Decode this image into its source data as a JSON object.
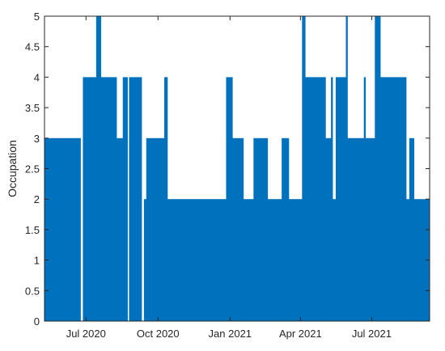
{
  "chart_data": {
    "type": "area",
    "ylabel": "Occupation",
    "xlabel": "",
    "ylim": [
      0,
      5
    ],
    "xlim": [
      "2020-05-09",
      "2021-09-13"
    ],
    "grid": false,
    "color": "#0072BD",
    "x_ticks": [
      {
        "date": "2020-07-01",
        "label": "Jul 2020"
      },
      {
        "date": "2020-10-01",
        "label": "Oct 2020"
      },
      {
        "date": "2021-01-01",
        "label": "Jan 2021"
      },
      {
        "date": "2021-04-01",
        "label": "Apr 2021"
      },
      {
        "date": "2021-07-01",
        "label": "Jul 2021"
      }
    ],
    "y_ticks": [
      {
        "value": 0,
        "label": "0"
      },
      {
        "value": 0.5,
        "label": "0.5"
      },
      {
        "value": 1,
        "label": "1"
      },
      {
        "value": 1.5,
        "label": "1.5"
      },
      {
        "value": 2,
        "label": "2"
      },
      {
        "value": 2.5,
        "label": "2.5"
      },
      {
        "value": 3,
        "label": "3"
      },
      {
        "value": 3.5,
        "label": "3.5"
      },
      {
        "value": 4,
        "label": "4"
      },
      {
        "value": 4.5,
        "label": "4.5"
      },
      {
        "value": 5,
        "label": "5"
      }
    ],
    "series": [
      {
        "steps": [
          {
            "start": "2020-05-09",
            "end": "2020-06-24",
            "value": 3
          },
          {
            "start": "2020-06-24",
            "end": "2020-06-27",
            "value": 0
          },
          {
            "start": "2020-06-27",
            "end": "2020-07-14",
            "value": 4
          },
          {
            "start": "2020-07-14",
            "end": "2020-07-20",
            "value": 5
          },
          {
            "start": "2020-07-20",
            "end": "2020-08-09",
            "value": 4
          },
          {
            "start": "2020-08-09",
            "end": "2020-08-17",
            "value": 3
          },
          {
            "start": "2020-08-17",
            "end": "2020-08-23",
            "value": 4
          },
          {
            "start": "2020-08-23",
            "end": "2020-08-25",
            "value": 0
          },
          {
            "start": "2020-08-25",
            "end": "2020-09-10",
            "value": 4
          },
          {
            "start": "2020-09-10",
            "end": "2020-09-13",
            "value": 0
          },
          {
            "start": "2020-09-13",
            "end": "2020-09-16",
            "value": 2
          },
          {
            "start": "2020-09-16",
            "end": "2020-10-09",
            "value": 3
          },
          {
            "start": "2020-10-09",
            "end": "2020-10-13",
            "value": 4
          },
          {
            "start": "2020-10-13",
            "end": "2020-12-27",
            "value": 2
          },
          {
            "start": "2020-12-27",
            "end": "2021-01-04",
            "value": 4
          },
          {
            "start": "2021-01-04",
            "end": "2021-01-18",
            "value": 3
          },
          {
            "start": "2021-01-18",
            "end": "2021-01-31",
            "value": 2
          },
          {
            "start": "2021-01-31",
            "end": "2021-02-18",
            "value": 3
          },
          {
            "start": "2021-02-18",
            "end": "2021-03-08",
            "value": 2
          },
          {
            "start": "2021-03-08",
            "end": "2021-03-17",
            "value": 3
          },
          {
            "start": "2021-03-17",
            "end": "2021-04-03",
            "value": 2
          },
          {
            "start": "2021-04-03",
            "end": "2021-04-07",
            "value": 5
          },
          {
            "start": "2021-04-07",
            "end": "2021-05-03",
            "value": 4
          },
          {
            "start": "2021-05-03",
            "end": "2021-05-10",
            "value": 3
          },
          {
            "start": "2021-05-10",
            "end": "2021-05-12",
            "value": 4
          },
          {
            "start": "2021-05-12",
            "end": "2021-05-16",
            "value": 2
          },
          {
            "start": "2021-05-16",
            "end": "2021-05-29",
            "value": 4
          },
          {
            "start": "2021-05-29",
            "end": "2021-05-31",
            "value": 5
          },
          {
            "start": "2021-05-31",
            "end": "2021-06-21",
            "value": 3
          },
          {
            "start": "2021-06-21",
            "end": "2021-06-23",
            "value": 4
          },
          {
            "start": "2021-06-23",
            "end": "2021-07-05",
            "value": 3
          },
          {
            "start": "2021-07-05",
            "end": "2021-07-12",
            "value": 5
          },
          {
            "start": "2021-07-12",
            "end": "2021-08-14",
            "value": 4
          },
          {
            "start": "2021-08-14",
            "end": "2021-08-18",
            "value": 2
          },
          {
            "start": "2021-08-18",
            "end": "2021-08-24",
            "value": 3
          },
          {
            "start": "2021-08-24",
            "end": "2021-08-29",
            "value": 2
          },
          {
            "start": "2021-08-29",
            "end": "2021-09-13",
            "value": 2
          }
        ]
      }
    ]
  }
}
